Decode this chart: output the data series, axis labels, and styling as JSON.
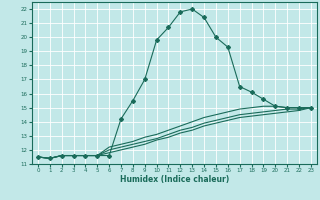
{
  "xlabel": "Humidex (Indice chaleur)",
  "xlim": [
    -0.5,
    23.5
  ],
  "ylim": [
    11,
    22.5
  ],
  "yticks": [
    11,
    12,
    13,
    14,
    15,
    16,
    17,
    18,
    19,
    20,
    21,
    22
  ],
  "xticks": [
    0,
    1,
    2,
    3,
    4,
    5,
    6,
    7,
    8,
    9,
    10,
    11,
    12,
    13,
    14,
    15,
    16,
    17,
    18,
    19,
    20,
    21,
    22,
    23
  ],
  "bg_color": "#c2e8e8",
  "grid_color": "#ffffff",
  "line_color": "#1a6b5a",
  "lines": [
    {
      "x": [
        0,
        1,
        2,
        3,
        4,
        5,
        6,
        7,
        8,
        9,
        10,
        11,
        12,
        13,
        14,
        15,
        16,
        17,
        18,
        19,
        20,
        21,
        22,
        23
      ],
      "y": [
        11.5,
        11.4,
        11.6,
        11.6,
        11.6,
        11.6,
        11.6,
        14.2,
        15.5,
        17.0,
        19.8,
        20.7,
        21.8,
        22.0,
        21.4,
        20.0,
        19.3,
        16.5,
        16.1,
        15.6,
        15.1,
        15.0,
        15.0,
        15.0
      ],
      "style": "-",
      "marker": "D",
      "markersize": 2.0,
      "linewidth": 0.8
    },
    {
      "x": [
        0,
        1,
        2,
        3,
        4,
        5,
        6,
        7,
        8,
        9,
        10,
        11,
        12,
        13,
        14,
        15,
        16,
        17,
        18,
        19,
        20,
        21,
        22,
        23
      ],
      "y": [
        11.5,
        11.4,
        11.6,
        11.6,
        11.6,
        11.6,
        12.2,
        12.4,
        12.6,
        12.9,
        13.1,
        13.4,
        13.7,
        14.0,
        14.3,
        14.5,
        14.7,
        14.9,
        15.0,
        15.1,
        15.1,
        15.0,
        15.0,
        15.0
      ],
      "style": "-",
      "marker": null,
      "markersize": 0,
      "linewidth": 0.8
    },
    {
      "x": [
        0,
        1,
        2,
        3,
        4,
        5,
        6,
        7,
        8,
        9,
        10,
        11,
        12,
        13,
        14,
        15,
        16,
        17,
        18,
        19,
        20,
        21,
        22,
        23
      ],
      "y": [
        11.5,
        11.4,
        11.6,
        11.6,
        11.6,
        11.6,
        12.0,
        12.2,
        12.4,
        12.6,
        12.8,
        13.1,
        13.4,
        13.6,
        13.9,
        14.1,
        14.3,
        14.5,
        14.6,
        14.7,
        14.8,
        14.9,
        14.9,
        15.0
      ],
      "style": "-",
      "marker": null,
      "markersize": 0,
      "linewidth": 0.8
    },
    {
      "x": [
        0,
        1,
        2,
        3,
        4,
        5,
        6,
        7,
        8,
        9,
        10,
        11,
        12,
        13,
        14,
        15,
        16,
        17,
        18,
        19,
        20,
        21,
        22,
        23
      ],
      "y": [
        11.5,
        11.4,
        11.6,
        11.6,
        11.6,
        11.6,
        11.8,
        12.0,
        12.2,
        12.4,
        12.7,
        12.9,
        13.2,
        13.4,
        13.7,
        13.9,
        14.1,
        14.3,
        14.4,
        14.5,
        14.6,
        14.7,
        14.8,
        15.0
      ],
      "style": "-",
      "marker": null,
      "markersize": 0,
      "linewidth": 0.8
    }
  ]
}
